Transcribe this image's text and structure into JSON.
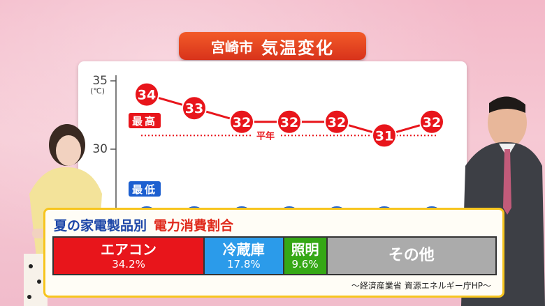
{
  "title": {
    "city": "宮崎市",
    "label": "気温変化"
  },
  "chart_data": {
    "type": "line",
    "unit": "(℃)",
    "yticks": [
      "35",
      "30"
    ],
    "ylim": [
      25,
      35
    ],
    "series": [
      {
        "name": "最高",
        "values": [
          34,
          33,
          32,
          32,
          32,
          31,
          32
        ],
        "color": "#e8151b"
      },
      {
        "name": "最低",
        "values": [
          25,
          25,
          25,
          25,
          25,
          25,
          25
        ],
        "color": "#1c5fd0"
      }
    ],
    "normal_line": {
      "label": "平年",
      "values": [
        31,
        31,
        31,
        31,
        31,
        31,
        31
      ]
    }
  },
  "panel": {
    "title_blue": "夏の家電製品別",
    "title_red": "電力消費割合",
    "segments": [
      {
        "label": "エアコン",
        "percent": "34.2%",
        "value": 34.2
      },
      {
        "label": "冷蔵庫",
        "percent": "17.8%",
        "value": 17.8
      },
      {
        "label": "照明",
        "percent": "9.6%",
        "value": 9.6
      },
      {
        "label": "その他",
        "percent": "",
        "value": 38.4
      }
    ],
    "source": "～経済産業省 資源エネルギー庁HP～"
  },
  "colors": {
    "accent": "#e02a1c",
    "frame": "#f7c51e",
    "ac": "#e8151b",
    "fridge": "#2b9bea",
    "light": "#35a815",
    "other": "#ababab"
  }
}
